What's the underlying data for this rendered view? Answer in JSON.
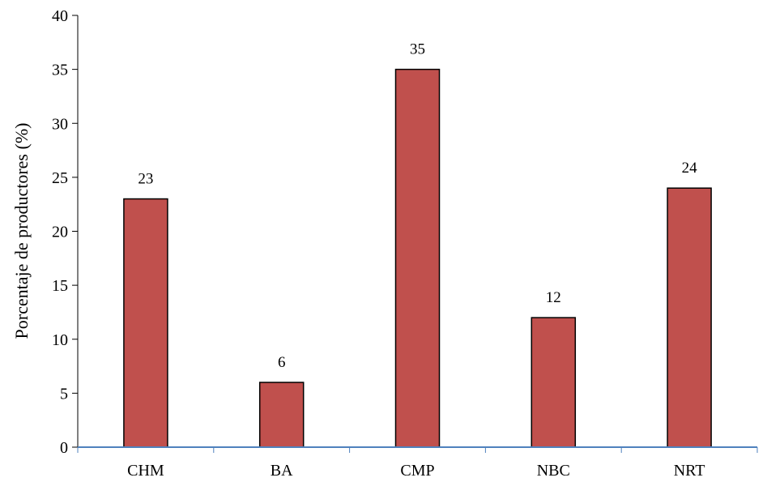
{
  "chart_data": {
    "type": "bar",
    "categories": [
      "CHM",
      "BA",
      "CMP",
      "NBC",
      "NRT"
    ],
    "series": [
      {
        "values": [
          23,
          6,
          35,
          12,
          24
        ],
        "color": "#c0504d",
        "edge_color": "#000000"
      }
    ],
    "data_labels": [
      "23",
      "6",
      "35",
      "12",
      "24"
    ],
    "title": "",
    "xlabel": "",
    "ylabel": "Porcentaje de productores (%)",
    "ylim": [
      0,
      40
    ],
    "yticks": [
      0,
      5,
      10,
      15,
      20,
      25,
      30,
      35,
      40
    ],
    "ytick_labels": [
      "0",
      "5",
      "10",
      "15",
      "20",
      "25",
      "30",
      "35",
      "40"
    ],
    "grid": false,
    "legend": "none",
    "x_axis_color": "#4f81bd",
    "y_axis_color": "#000000"
  }
}
